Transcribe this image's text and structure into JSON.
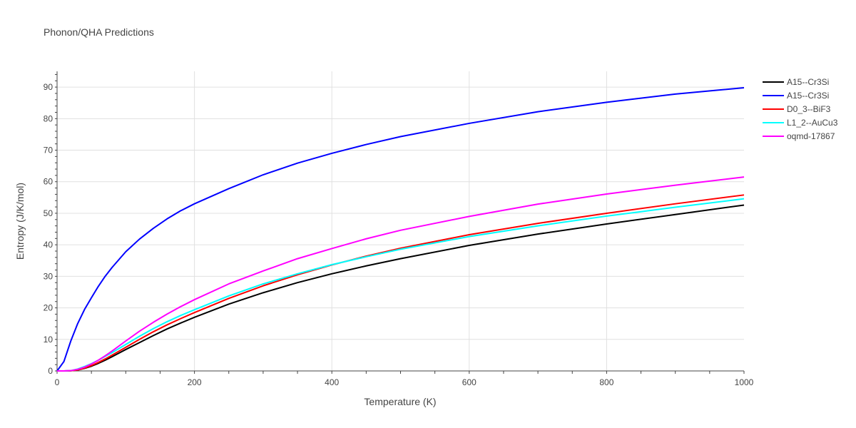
{
  "chart_data": {
    "type": "line",
    "title": "Phonon/QHA Predictions",
    "xlabel": "Temperature (K)",
    "ylabel": "Entropy (J/K/mol)",
    "xlim": [
      0,
      1000
    ],
    "ylim": [
      0,
      95
    ],
    "xticks": [
      0,
      200,
      400,
      600,
      800,
      1000
    ],
    "yticks": [
      0,
      10,
      20,
      30,
      40,
      50,
      60,
      70,
      80,
      90
    ],
    "grid": true,
    "legend_position": "top-right",
    "x": [
      0,
      10,
      20,
      30,
      40,
      50,
      60,
      70,
      80,
      100,
      120,
      140,
      160,
      180,
      200,
      250,
      300,
      350,
      400,
      450,
      500,
      600,
      700,
      800,
      900,
      1000
    ],
    "series": [
      {
        "name": "A15--Cr3Si",
        "color": "#000000",
        "values": [
          0,
          0,
          0.05,
          0.3,
          0.8,
          1.5,
          2.4,
          3.4,
          4.5,
          6.8,
          9.0,
          11.2,
          13.3,
          15.2,
          17.0,
          21.2,
          24.8,
          28.0,
          30.8,
          33.3,
          35.6,
          39.8,
          43.4,
          46.6,
          49.6,
          52.6
        ]
      },
      {
        "name": "A15--Cr3Si",
        "color": "#0000ff",
        "values": [
          0,
          3.0,
          9.5,
          15.0,
          19.5,
          23.2,
          26.8,
          30.0,
          32.8,
          37.8,
          41.8,
          45.2,
          48.2,
          50.8,
          53.0,
          57.8,
          62.2,
          65.9,
          69.0,
          71.8,
          74.3,
          78.5,
          82.2,
          85.2,
          87.8,
          89.8
        ]
      },
      {
        "name": "D0_3--BiF3",
        "color": "#ff0000",
        "values": [
          0,
          0,
          0.05,
          0.3,
          0.9,
          1.7,
          2.7,
          3.8,
          5.0,
          7.5,
          10.0,
          12.4,
          14.6,
          16.6,
          18.5,
          23.0,
          27.0,
          30.5,
          33.6,
          36.4,
          38.9,
          43.2,
          46.8,
          50.0,
          53.0,
          55.8
        ]
      },
      {
        "name": "L1_2--AuCu3",
        "color": "#00ffff",
        "values": [
          0,
          0,
          0.1,
          0.6,
          1.4,
          2.3,
          3.4,
          4.6,
          5.8,
          8.4,
          11.0,
          13.4,
          15.6,
          17.6,
          19.4,
          23.8,
          27.6,
          30.8,
          33.7,
          36.2,
          38.6,
          42.6,
          46.0,
          49.1,
          51.9,
          54.6
        ]
      },
      {
        "name": "oqmd-17867",
        "color": "#ff00ff",
        "values": [
          0,
          0,
          0.1,
          0.5,
          1.2,
          2.2,
          3.4,
          4.8,
          6.3,
          9.5,
          12.6,
          15.4,
          18.0,
          20.4,
          22.6,
          27.6,
          31.7,
          35.6,
          38.8,
          41.9,
          44.6,
          49.0,
          52.9,
          56.1,
          58.9,
          61.5
        ]
      }
    ]
  }
}
